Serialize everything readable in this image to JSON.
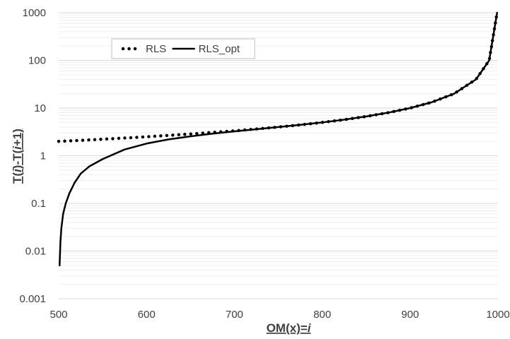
{
  "chart_data": {
    "type": "line",
    "title": "",
    "xlabel_main": "OM(x)=",
    "xlabel_var": "i",
    "ylabel_parts": [
      "T(",
      "i",
      ")-T(",
      "i",
      "+1)"
    ],
    "x_scale": "linear",
    "y_scale": "log",
    "xlim": [
      500,
      1000
    ],
    "ylim": [
      0.001,
      1000
    ],
    "x_ticks": [
      500,
      600,
      700,
      800,
      900,
      1000
    ],
    "x_tick_labels": [
      "500",
      "600",
      "700",
      "800",
      "900",
      "1000"
    ],
    "y_ticks": [
      0.001,
      0.01,
      0.1,
      1,
      10,
      100,
      1000
    ],
    "y_tick_labels": [
      "0.001",
      "0.01",
      "0.1",
      "1",
      "10",
      "100",
      "1000"
    ],
    "minor_gridlines": true,
    "legend_position": "top-left",
    "series": [
      {
        "name": "RLS",
        "style": "dotted",
        "color": "#000000",
        "x": [
          500,
          525,
          550,
          575,
          600,
          625,
          650,
          675,
          700,
          725,
          750,
          775,
          800,
          825,
          850,
          875,
          900,
          925,
          950,
          975,
          990,
          999
        ],
        "y": [
          2.0,
          2.1,
          2.22,
          2.35,
          2.5,
          2.67,
          2.86,
          3.08,
          3.33,
          3.64,
          4.0,
          4.44,
          5.0,
          5.71,
          6.67,
          8.0,
          10.0,
          13.3,
          20.0,
          40.0,
          100.0,
          1000.0
        ]
      },
      {
        "name": "RLS_opt",
        "style": "solid",
        "color": "#000000",
        "x": [
          501,
          502,
          503,
          505,
          508,
          512,
          518,
          525,
          535,
          550,
          575,
          600,
          625,
          650,
          675,
          700,
          725,
          750,
          775,
          800,
          825,
          850,
          875,
          900,
          925,
          950,
          975,
          990,
          999
        ],
        "y": [
          0.005,
          0.016,
          0.03,
          0.06,
          0.1,
          0.16,
          0.27,
          0.42,
          0.6,
          0.85,
          1.35,
          1.8,
          2.2,
          2.55,
          2.9,
          3.25,
          3.6,
          4.0,
          4.44,
          5.0,
          5.71,
          6.67,
          8.0,
          10.0,
          13.3,
          20.0,
          40.0,
          100.0,
          1000.0
        ]
      }
    ]
  },
  "colors": {
    "gridline": "#d9d9d9",
    "minor_gridline": "#eeeeee",
    "series": "#000000",
    "text": "#404040"
  }
}
